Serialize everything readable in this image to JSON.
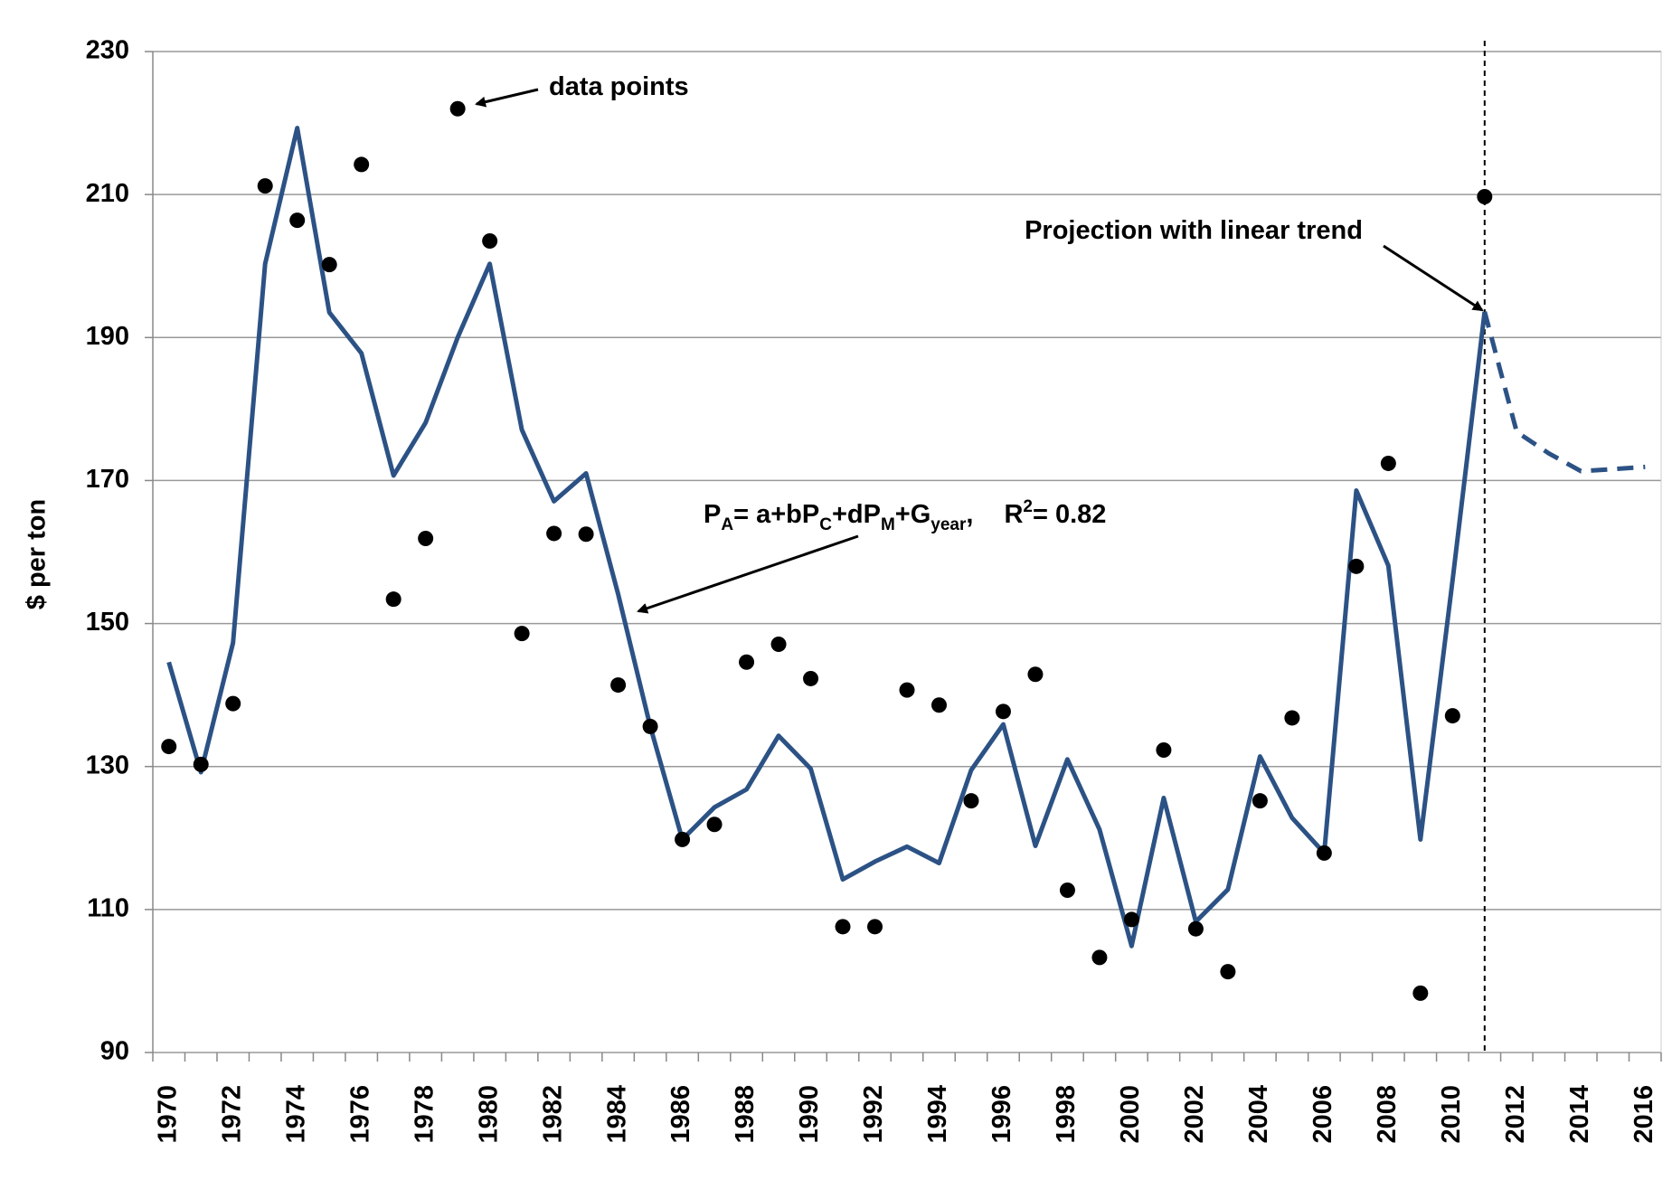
{
  "chart_data": {
    "type": "line",
    "y_label": "$ per ton",
    "categories": [
      "1970",
      null,
      "1972",
      null,
      "1974",
      null,
      "1976",
      null,
      "1978",
      null,
      "1980",
      null,
      "1982",
      null,
      "1984",
      null,
      "1986",
      null,
      "1988",
      null,
      "1990",
      null,
      "1992",
      null,
      "1994",
      null,
      "1996",
      null,
      "1998",
      null,
      "2000",
      null,
      "2002",
      null,
      "2004",
      null,
      "2006",
      null,
      "2008",
      null,
      "2010",
      null,
      "2012",
      null,
      "2014",
      null,
      "2016"
    ],
    "ylim": [
      90,
      230
    ],
    "yticks": [
      90,
      110,
      130,
      150,
      170,
      190,
      210,
      230
    ],
    "grid": true,
    "series": [
      {
        "mode": "line",
        "dashed": false,
        "color": "#2c5285",
        "values": [
          144.6,
          129.2,
          147.3,
          200.3,
          219.3,
          193.5,
          187.8,
          170.7,
          178.1,
          190.0,
          200.3,
          177.1,
          167.1,
          171.0,
          154.1,
          135.6,
          119.8,
          124.3,
          126.8,
          134.3,
          129.7,
          114.2,
          116.7,
          118.8,
          116.5,
          129.5,
          135.9,
          118.9,
          131.0,
          121.2,
          104.9,
          125.6,
          108.3,
          112.8,
          131.4,
          122.8,
          117.9,
          168.6,
          158.1,
          119.8,
          156.0,
          193.6,
          null,
          null,
          null,
          null,
          null
        ]
      },
      {
        "mode": "line",
        "dashed": true,
        "color": "#2c5285",
        "values": [
          null,
          null,
          null,
          null,
          null,
          null,
          null,
          null,
          null,
          null,
          null,
          null,
          null,
          null,
          null,
          null,
          null,
          null,
          null,
          null,
          null,
          null,
          null,
          null,
          null,
          null,
          null,
          null,
          null,
          null,
          null,
          null,
          null,
          null,
          null,
          null,
          null,
          null,
          null,
          null,
          null,
          193.6,
          176.8,
          173.8,
          171.3,
          171.6,
          171.9
        ]
      },
      {
        "mode": "markers",
        "color": "#000000",
        "values": [
          132.8,
          130.3,
          138.8,
          211.2,
          206.4,
          200.2,
          214.2,
          153.4,
          161.9,
          222.0,
          203.5,
          148.6,
          162.6,
          162.5,
          141.4,
          135.6,
          119.8,
          121.9,
          144.6,
          147.1,
          142.3,
          107.6,
          107.6,
          140.7,
          138.6,
          125.2,
          137.7,
          142.9,
          112.7,
          103.3,
          108.6,
          132.3,
          107.3,
          101.3,
          125.2,
          136.8,
          117.9,
          158.0,
          172.4,
          98.3,
          137.1,
          209.7,
          null,
          null,
          null,
          null,
          null
        ]
      }
    ],
    "annotations": {
      "points_label": "data points",
      "projection_label": "Projection with linear trend",
      "formula": [
        "P",
        "A",
        "= a+bP",
        "C",
        "+dP",
        "M",
        "+G",
        "year",
        ",",
        "R",
        "2",
        "= 0.82"
      ]
    }
  }
}
